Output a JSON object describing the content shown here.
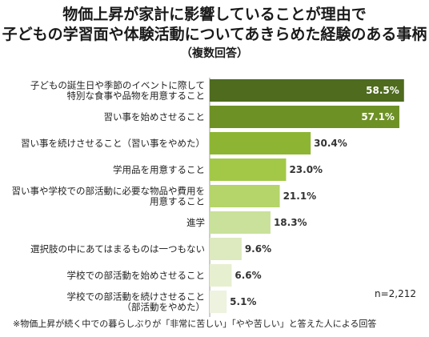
{
  "chart_data": {
    "type": "bar",
    "orientation": "horizontal",
    "title_lines": [
      "物価上昇が家計に影響していることが理由で",
      "子どもの学習面や体験活動についてあきらめた経験のある事柄"
    ],
    "subtitle": "（複数回答）",
    "categories": [
      [
        "子どもの誕生日や季節のイベントに際して",
        "特別な食事や品物を用意すること"
      ],
      [
        "習い事を始めさせること"
      ],
      [
        "習い事を続けさせること（習い事をやめた）"
      ],
      [
        "学用品を用意すること"
      ],
      [
        "習い事や学校での部活動に必要な物品や費用を",
        "用意すること"
      ],
      [
        "進学"
      ],
      [
        "選択肢の中にあてはまるものは一つもない"
      ],
      [
        "学校での部活動を始めさせること"
      ],
      [
        "学校での部活動を続けさせること",
        "（部活動をやめた）"
      ]
    ],
    "values": [
      58.5,
      57.1,
      30.4,
      23.0,
      21.1,
      18.3,
      9.6,
      6.6,
      5.1
    ],
    "value_labels": [
      "58.5%",
      "57.1%",
      "30.4%",
      "23.0%",
      "21.1%",
      "18.3%",
      "9.6%",
      "6.6%",
      "5.1%"
    ],
    "bar_colors": [
      "#4e6b1e",
      "#6e9126",
      "#8db533",
      "#a3c848",
      "#b5d46a",
      "#c9e19a",
      "#dde9bf",
      "#e6efd0",
      "#edf3df"
    ],
    "value_label_colors": [
      "#ffffff",
      "#ffffff",
      "#333333",
      "#333333",
      "#333333",
      "#333333",
      "#333333",
      "#333333",
      "#333333"
    ],
    "xlim": [
      0,
      60
    ],
    "n_label": "n=2,212",
    "footnote": "※物価上昇が続く中での暮らしぶりが「非常に苦しい」「やや苦しい」と答えた人による回答"
  }
}
